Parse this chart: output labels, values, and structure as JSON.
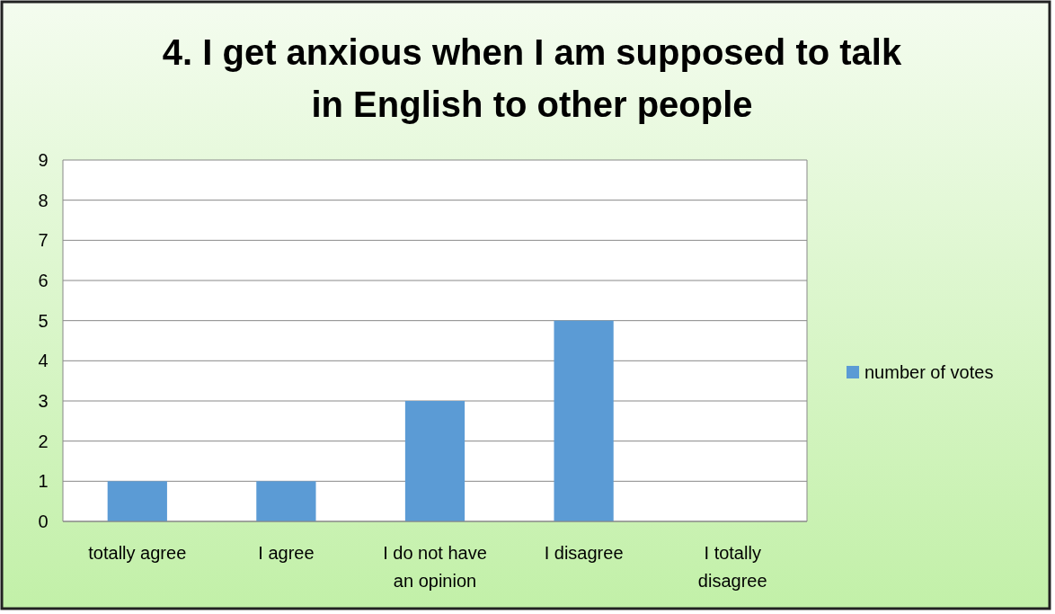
{
  "chart_data": {
    "type": "bar",
    "title": "4. I get anxious when I am supposed to talk in English to other people",
    "categories": [
      "totally agree",
      "I agree",
      "I do not have an opinion",
      "I disagree",
      "I totally disagree"
    ],
    "series": [
      {
        "name": "number of votes",
        "color": "#5b9bd5",
        "values": [
          1,
          1,
          3,
          5,
          0
        ]
      }
    ],
    "ylim": [
      0,
      9
    ],
    "yticks": [
      0,
      1,
      2,
      3,
      4,
      5,
      6,
      7,
      8,
      9
    ],
    "grid": "y",
    "legend": "right"
  }
}
